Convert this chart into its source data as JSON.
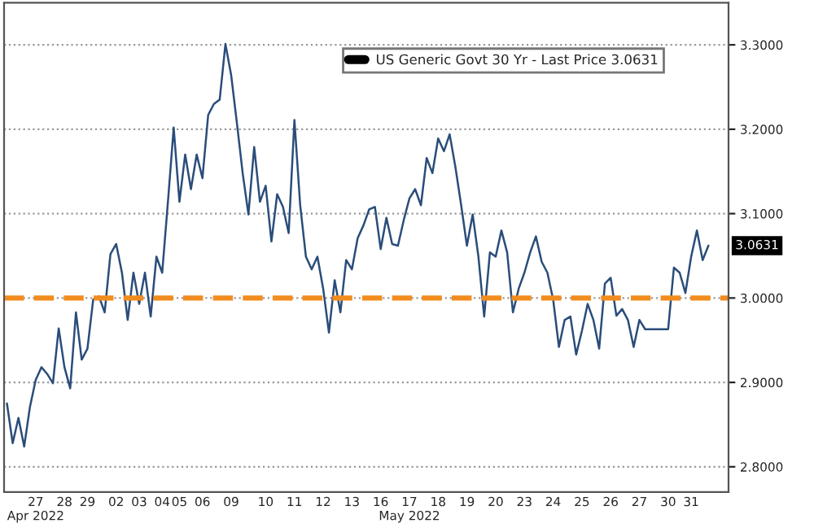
{
  "chart_data": {
    "type": "line",
    "categories": [
      null,
      null,
      null,
      null,
      null,
      "27\nApr 2022",
      null,
      null,
      null,
      null,
      "28",
      null,
      null,
      null,
      "29",
      null,
      null,
      null,
      null,
      "02",
      null,
      null,
      null,
      "03",
      null,
      null,
      null,
      "04",
      null,
      null,
      "05",
      null,
      null,
      null,
      "06",
      null,
      null,
      null,
      null,
      "09",
      null,
      null,
      null,
      null,
      null,
      "10",
      null,
      null,
      null,
      null,
      "11",
      null,
      null,
      null,
      null,
      "12",
      null,
      null,
      null,
      null,
      "13",
      null,
      null,
      null,
      null,
      "16",
      null,
      null,
      null,
      null,
      "17\nMay 2022",
      null,
      null,
      null,
      null,
      "18",
      null,
      null,
      null,
      null,
      "19",
      null,
      null,
      null,
      null,
      "20",
      null,
      null,
      null,
      null,
      "23",
      null,
      null,
      null,
      null,
      "24",
      null,
      null,
      null,
      null,
      "25",
      null,
      null,
      null,
      null,
      "26",
      null,
      null,
      null,
      null,
      "27",
      null,
      null,
      null,
      null,
      "30",
      null,
      null,
      null,
      "31",
      null,
      null,
      null
    ],
    "ylim": [
      2.77,
      3.35
    ],
    "yticks": [
      {
        "value": 2.8,
        "label": "2.8000"
      },
      {
        "value": 2.9,
        "label": "2.9000"
      },
      {
        "value": 3.0,
        "label": "3.0000"
      },
      {
        "value": 3.1,
        "label": "3.1000"
      },
      {
        "value": 3.2,
        "label": "3.2000"
      },
      {
        "value": 3.3,
        "label": "3.3000"
      }
    ],
    "grid": "y",
    "legend": "top right",
    "series": [
      {
        "name": "US Generic Govt 30 Yr - Last Price 3.0631",
        "color": "#2a4d7a",
        "values": [
          2.875,
          2.828,
          2.858,
          2.824,
          2.871,
          2.903,
          2.918,
          2.91,
          2.899,
          2.964,
          2.918,
          2.893,
          2.983,
          2.927,
          2.94,
          2.998,
          3.002,
          2.983,
          3.052,
          3.064,
          3.03,
          2.974,
          3.03,
          2.993,
          3.03,
          2.978,
          3.049,
          3.03,
          3.114,
          3.202,
          3.114,
          3.17,
          3.129,
          3.17,
          3.142,
          3.217,
          3.23,
          3.235,
          3.301,
          3.264,
          3.207,
          3.148,
          3.099,
          3.179,
          3.114,
          3.133,
          3.067,
          3.123,
          3.108,
          3.077,
          3.211,
          3.11,
          3.049,
          3.034,
          3.049,
          3.011,
          2.959,
          3.021,
          2.983,
          3.045,
          3.034,
          3.071,
          3.086,
          3.105,
          3.108,
          3.058,
          3.095,
          3.064,
          3.062,
          3.092,
          3.118,
          3.129,
          3.11,
          3.166,
          3.148,
          3.189,
          3.174,
          3.194,
          3.155,
          3.11,
          3.062,
          3.099,
          3.049,
          2.978,
          3.054,
          3.049,
          3.08,
          3.054,
          2.983,
          3.011,
          3.03,
          3.054,
          3.073,
          3.043,
          3.03,
          2.998,
          2.942,
          2.974,
          2.978,
          2.933,
          2.961,
          2.993,
          2.974,
          2.94,
          3.017,
          3.024,
          2.979,
          2.987,
          2.974,
          2.942,
          2.974,
          2.963,
          2.963,
          2.963,
          2.963,
          2.963,
          3.036,
          3.03,
          3.006,
          3.049,
          3.08,
          3.045,
          3.062
        ]
      }
    ],
    "ref_lines": [
      {
        "axis": "y",
        "value": 3.0,
        "color": "#f28c1e",
        "line_style": "dashed"
      }
    ],
    "annotations": [
      "3.0631"
    ]
  }
}
